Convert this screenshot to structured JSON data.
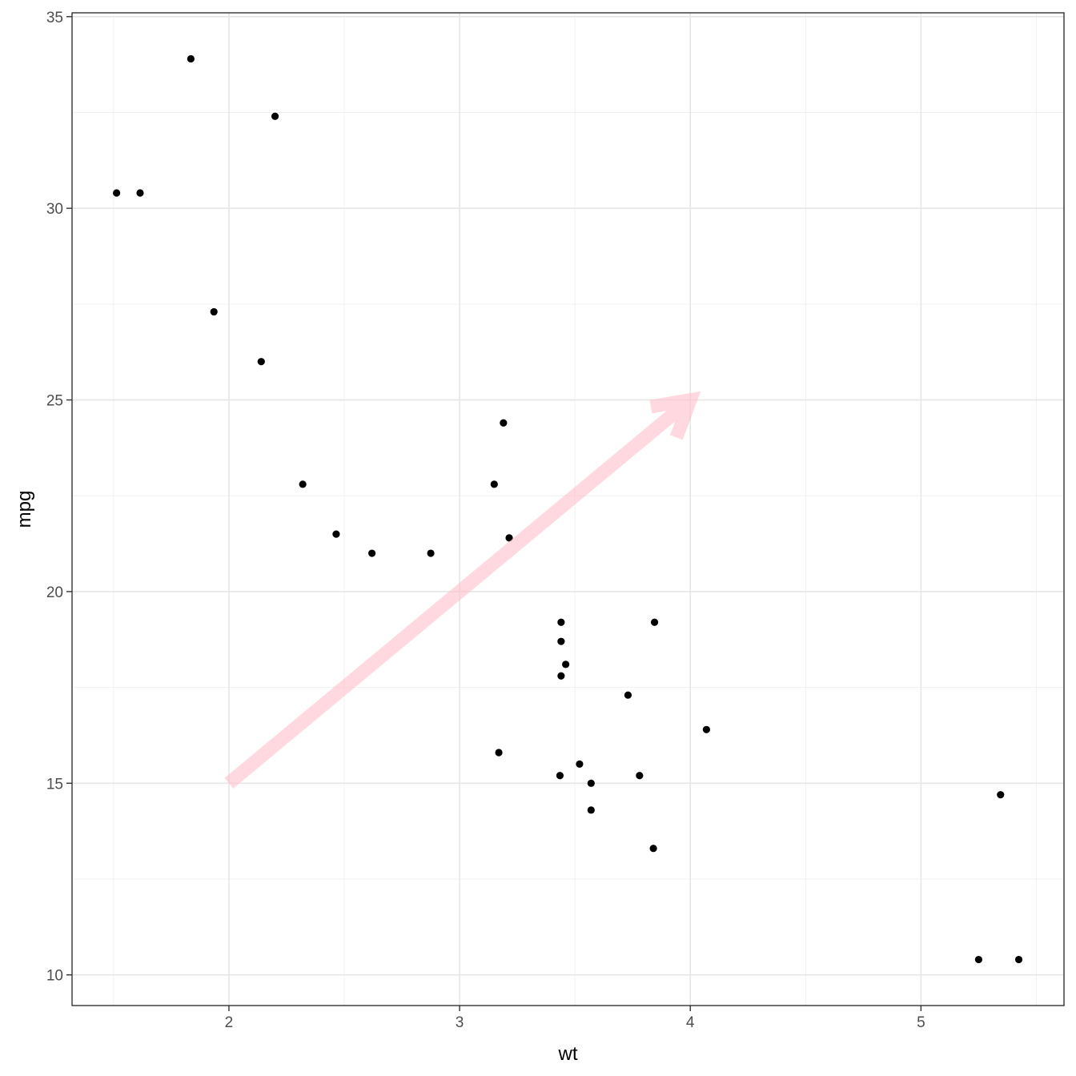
{
  "chart_data": {
    "type": "scatter",
    "xlabel": "wt",
    "ylabel": "mpg",
    "xlim": [
      1.32,
      5.62
    ],
    "ylim": [
      9.2,
      35.1
    ],
    "x_ticks": [
      2,
      3,
      4,
      5
    ],
    "y_ticks": [
      10,
      15,
      20,
      25,
      30,
      35
    ],
    "x_minor": [
      1.5,
      2.5,
      3.5,
      4.5,
      5.5
    ],
    "y_minor": [
      12.5,
      17.5,
      22.5,
      27.5,
      32.5
    ],
    "grid": true,
    "point_color": "#000000",
    "points": [
      {
        "x": 2.62,
        "y": 21.0
      },
      {
        "x": 2.875,
        "y": 21.0
      },
      {
        "x": 2.32,
        "y": 22.8
      },
      {
        "x": 3.215,
        "y": 21.4
      },
      {
        "x": 3.44,
        "y": 18.7
      },
      {
        "x": 3.46,
        "y": 18.1
      },
      {
        "x": 3.57,
        "y": 14.3
      },
      {
        "x": 3.19,
        "y": 24.4
      },
      {
        "x": 3.15,
        "y": 22.8
      },
      {
        "x": 3.44,
        "y": 19.2
      },
      {
        "x": 3.44,
        "y": 17.8
      },
      {
        "x": 4.07,
        "y": 16.4
      },
      {
        "x": 3.73,
        "y": 17.3
      },
      {
        "x": 3.78,
        "y": 15.2
      },
      {
        "x": 5.25,
        "y": 10.4
      },
      {
        "x": 5.424,
        "y": 10.4
      },
      {
        "x": 5.345,
        "y": 14.7
      },
      {
        "x": 2.2,
        "y": 32.4
      },
      {
        "x": 1.615,
        "y": 30.4
      },
      {
        "x": 1.835,
        "y": 33.9
      },
      {
        "x": 2.465,
        "y": 21.5
      },
      {
        "x": 3.52,
        "y": 15.5
      },
      {
        "x": 3.435,
        "y": 15.2
      },
      {
        "x": 3.84,
        "y": 13.3
      },
      {
        "x": 3.845,
        "y": 19.2
      },
      {
        "x": 1.935,
        "y": 27.3
      },
      {
        "x": 2.14,
        "y": 26.0
      },
      {
        "x": 1.513,
        "y": 30.4
      },
      {
        "x": 3.17,
        "y": 15.8
      },
      {
        "x": 3.57,
        "y": 15.0
      }
    ],
    "annotation": {
      "type": "arrow",
      "x": 2,
      "y": 15,
      "xend": 4,
      "yend": 25,
      "color": "#FFC0CB",
      "alpha": 0.6
    }
  }
}
